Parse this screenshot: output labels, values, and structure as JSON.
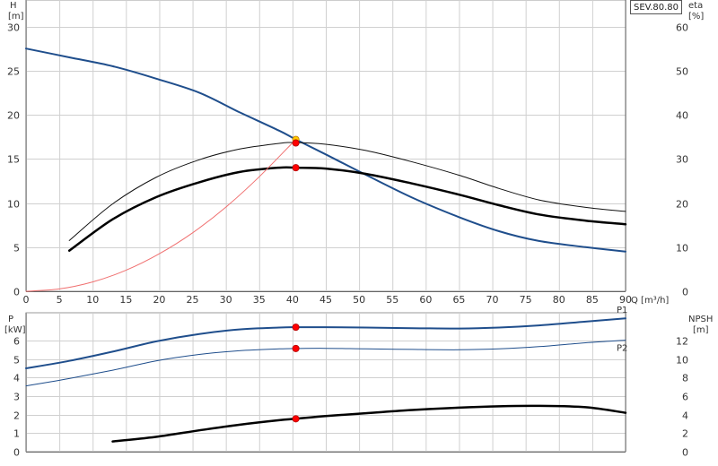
{
  "model_label": "SEV.80.80",
  "chart_data": [
    {
      "type": "line",
      "name": "pump-curves",
      "x_label": "Q [m³/h]",
      "y_left_label": [
        "H",
        "[m]"
      ],
      "y_right_label": [
        "eta",
        "[%]"
      ],
      "xlim": [
        0,
        90
      ],
      "ylim_left": [
        0,
        33
      ],
      "ylim_right": [
        0,
        66
      ],
      "x_ticks": [
        0,
        5,
        10,
        15,
        20,
        25,
        30,
        35,
        40,
        45,
        50,
        55,
        60,
        65,
        70,
        75,
        80,
        85,
        90
      ],
      "y_left_ticks": [
        0,
        5,
        10,
        15,
        20,
        25,
        30
      ],
      "y_right_ticks": [
        0,
        10,
        20,
        30,
        40,
        50,
        60
      ],
      "grid": true,
      "series": [
        {
          "key": "head",
          "axis": "left",
          "color": "#1f4e8c",
          "width": 2,
          "x": [
            0,
            6.5,
            13,
            19.5,
            26,
            32,
            38,
            40.5,
            45,
            51,
            58,
            65,
            71,
            77,
            84,
            90
          ],
          "y": [
            27.5,
            26.5,
            25.5,
            24.1,
            22.5,
            20.3,
            18.2,
            17.2,
            15.5,
            13.2,
            10.6,
            8.4,
            6.8,
            5.7,
            5.0,
            4.5
          ]
        },
        {
          "key": "eta-thin",
          "axis": "right",
          "color": "#111111",
          "width": 1,
          "x": [
            6.5,
            13,
            19.5,
            26,
            32,
            38,
            40.5,
            45,
            51,
            58,
            65,
            71,
            77,
            84,
            90
          ],
          "y": [
            11.5,
            19.8,
            25.8,
            29.8,
            32.2,
            33.5,
            33.7,
            33.3,
            31.9,
            29.3,
            26.3,
            23.3,
            20.7,
            19.0,
            18.1
          ]
        },
        {
          "key": "eta-thick",
          "axis": "right",
          "color": "#000000",
          "width": 2.5,
          "x": [
            6.5,
            13,
            19.5,
            26,
            32,
            38,
            40.5,
            45,
            51,
            58,
            65,
            71,
            77,
            84,
            90
          ],
          "y": [
            9.2,
            16.3,
            21.3,
            24.7,
            27.0,
            28.0,
            28.0,
            27.8,
            26.6,
            24.4,
            21.9,
            19.5,
            17.4,
            16.0,
            15.2
          ]
        },
        {
          "key": "system",
          "axis": "left",
          "color": "#f07070",
          "width": 1,
          "x": [
            0,
            5,
            10,
            15,
            20,
            25,
            30,
            35,
            40.5
          ],
          "y": [
            0,
            0.26,
            1.06,
            2.38,
            4.24,
            6.62,
            9.53,
            12.97,
            17.2
          ]
        }
      ],
      "markers": [
        {
          "x": 40.5,
          "y": 17.2,
          "axis": "left",
          "color": "#ffcc00",
          "stroke": "#c07800"
        },
        {
          "x": 40.5,
          "y": 33.6,
          "axis": "right",
          "color": "#ff0000",
          "stroke": "#b00000"
        },
        {
          "x": 40.5,
          "y": 28.0,
          "axis": "right",
          "color": "#ff0000",
          "stroke": "#b00000"
        }
      ]
    },
    {
      "type": "line",
      "name": "power-npsh",
      "y_left_label": [
        "P",
        "[kW]"
      ],
      "y_right_label": [
        "NPSH",
        "[m]"
      ],
      "xlim": [
        0,
        90
      ],
      "ylim_left": [
        0,
        7.5
      ],
      "ylim_right": [
        0,
        15
      ],
      "y_left_ticks": [
        0,
        1,
        2,
        3,
        4,
        5,
        6
      ],
      "y_right_ticks": [
        0,
        2,
        4,
        6,
        8,
        10,
        12
      ],
      "grid": true,
      "series": [
        {
          "key": "P1",
          "name": "P1",
          "axis": "left",
          "color": "#1f4e8c",
          "width": 2,
          "x": [
            0,
            6.5,
            13,
            19.5,
            26,
            32,
            38,
            40.5,
            45,
            51,
            58,
            65,
            71,
            77,
            84,
            90
          ],
          "y": [
            4.5,
            4.9,
            5.4,
            5.95,
            6.35,
            6.6,
            6.7,
            6.72,
            6.72,
            6.7,
            6.67,
            6.65,
            6.7,
            6.82,
            7.02,
            7.2
          ]
        },
        {
          "key": "P2",
          "name": "P2",
          "axis": "left",
          "color": "#1f4e8c",
          "width": 1,
          "x": [
            0,
            6.5,
            13,
            19.5,
            26,
            32,
            38,
            40.5,
            45,
            51,
            58,
            65,
            71,
            77,
            84,
            90
          ],
          "y": [
            3.55,
            3.95,
            4.4,
            4.9,
            5.25,
            5.45,
            5.55,
            5.57,
            5.58,
            5.55,
            5.52,
            5.5,
            5.55,
            5.67,
            5.88,
            6.02
          ]
        },
        {
          "key": "NPSH",
          "axis": "right",
          "color": "#000000",
          "width": 2.5,
          "x": [
            13,
            19.5,
            26,
            32,
            38,
            40.5,
            45,
            51,
            58,
            65,
            71,
            77,
            84,
            90
          ],
          "y": [
            1.1,
            1.6,
            2.3,
            2.9,
            3.4,
            3.55,
            3.85,
            4.15,
            4.5,
            4.75,
            4.9,
            4.95,
            4.8,
            4.2
          ]
        }
      ],
      "markers": [
        {
          "x": 40.5,
          "y": 6.72,
          "axis": "left",
          "color": "#ff0000",
          "stroke": "#b00000"
        },
        {
          "x": 40.5,
          "y": 5.57,
          "axis": "left",
          "color": "#ff0000",
          "stroke": "#b00000"
        },
        {
          "x": 40.5,
          "y": 3.55,
          "axis": "right",
          "color": "#ff0000",
          "stroke": "#b00000"
        }
      ]
    }
  ]
}
